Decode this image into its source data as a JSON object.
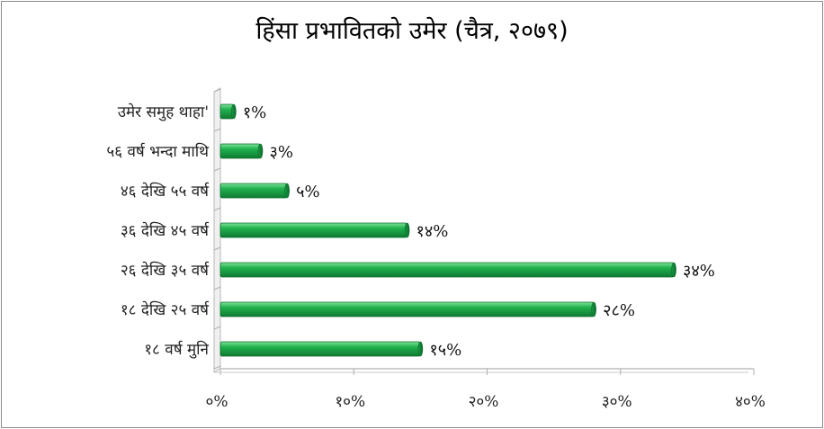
{
  "chart_data": {
    "type": "bar",
    "orientation": "horizontal",
    "title": "हिंसा प्रभावितको उमेर (चैत्र, २०७९)",
    "categories": [
      "उमेर समुह थाहा'",
      "५६ वर्ष भन्दा माथि",
      "४६ देखि ५५ वर्ष",
      "३६ देखि ४५ वर्ष",
      "२६ देखि ३५ वर्ष",
      "१८ देखि २५ वर्ष",
      "१८ वर्ष मुनि"
    ],
    "values": [
      1,
      3,
      5,
      14,
      34,
      28,
      15
    ],
    "data_labels": [
      "१%",
      "३%",
      "५%",
      "१४%",
      "३४%",
      "२८%",
      "१५%"
    ],
    "xlim": [
      0,
      40
    ],
    "xticks": [
      0,
      10,
      20,
      30,
      40
    ],
    "xtick_labels": [
      "०%",
      "१०%",
      "२०%",
      "३०%",
      "४०%"
    ],
    "bar_color": "#1faa4b",
    "grid": false,
    "legend": "none"
  }
}
